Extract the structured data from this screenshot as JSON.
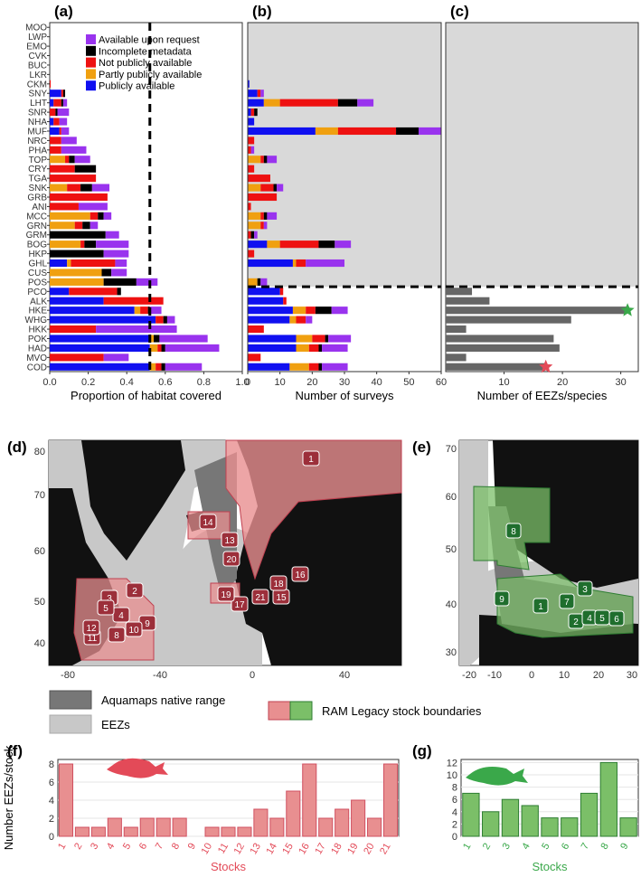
{
  "panel_letters": [
    "(a)",
    "(b)",
    "(c)",
    "(d)",
    "(e)",
    "(f)",
    "(g)"
  ],
  "colors": {
    "available_upon_request": "#9933ee",
    "incomplete_metadata": "#000000",
    "not_publicly_available": "#ee1111",
    "partly_publicly_available": "#f0a010",
    "publicly_available": "#1010f0",
    "panel_gray": "#d9d9d9",
    "eez_bar": "#666666",
    "cod_red": "#e34a58",
    "hake_green": "#3aa84a",
    "ram_red": "#e88f90",
    "ram_green": "#7bbf68",
    "aquamaps": "#777777",
    "eez_light": "#c8c8c8"
  },
  "chart_data": [
    {
      "panel": "(a)",
      "type": "bar",
      "orientation": "horizontal",
      "stacked": true,
      "xlabel": "Proportion of habitat covered",
      "xlim": [
        0,
        1.0
      ],
      "xticks": [
        "0.0",
        "0.2",
        "0.4",
        "0.6",
        "0.8",
        "1.0"
      ],
      "reference_line": 0.52,
      "legend_position": "top",
      "legend": [
        "Available upon request",
        "Incomplete metadata",
        "Not publicly available",
        "Partly publicly available",
        "Publicly available"
      ],
      "categories": [
        "MOO",
        "LWP",
        "EMO",
        "CVK",
        "BUC",
        "LKR",
        "CKM",
        "SNY",
        "LHT",
        "SNR",
        "NHA",
        "MUF",
        "NRC",
        "PHA",
        "TOP",
        "CRY",
        "TGA",
        "SNK",
        "GRB",
        "ANI",
        "MCC",
        "GRN",
        "GRM",
        "BOG",
        "HKP",
        "GHL",
        "CUS",
        "POS",
        "PCO",
        "ALK",
        "HKE",
        "WHG",
        "HKK",
        "POK",
        "HAD",
        "MVO",
        "COD"
      ],
      "series": [
        {
          "name": "Publicly available",
          "values": [
            0,
            0,
            0,
            0,
            0,
            0,
            0,
            0.06,
            0.02,
            0,
            0.02,
            0.05,
            0,
            0,
            0,
            0,
            0,
            0,
            0,
            0,
            0,
            0,
            0,
            0,
            0,
            0.09,
            0,
            0,
            0.1,
            0.28,
            0.44,
            0.55,
            0,
            0.52,
            0.52,
            0,
            0.52
          ]
        },
        {
          "name": "Partly publicly available",
          "values": [
            0,
            0,
            0,
            0,
            0,
            0,
            0,
            0,
            0,
            0,
            0,
            0,
            0,
            0,
            0.08,
            0,
            0,
            0.09,
            0,
            0,
            0.21,
            0.13,
            0,
            0.16,
            0,
            0.02,
            0.27,
            0.28,
            0,
            0,
            0.03,
            0,
            0,
            0.02,
            0.04,
            0,
            0.03
          ]
        },
        {
          "name": "Not publicly available",
          "values": [
            0,
            0,
            0,
            0,
            0,
            0,
            0.005,
            0.01,
            0.04,
            0.03,
            0.03,
            0.01,
            0.06,
            0.06,
            0.02,
            0.13,
            0.24,
            0.07,
            0.3,
            0.15,
            0.04,
            0.04,
            0,
            0.02,
            0,
            0.23,
            0,
            0,
            0.25,
            0.31,
            0.04,
            0.04,
            0.24,
            0,
            0.02,
            0.28,
            0.03
          ]
        },
        {
          "name": "Incomplete metadata",
          "values": [
            0,
            0,
            0,
            0,
            0,
            0,
            0,
            0.01,
            0.01,
            0.01,
            0,
            0,
            0,
            0,
            0.03,
            0.11,
            0,
            0.06,
            0,
            0,
            0.03,
            0.04,
            0.29,
            0.06,
            0.28,
            0,
            0.05,
            0.17,
            0.02,
            0,
            0.01,
            0.02,
            0,
            0.03,
            0.02,
            0,
            0.02
          ]
        },
        {
          "name": "Available upon request",
          "values": [
            0,
            0,
            0,
            0,
            0,
            0,
            0,
            0,
            0.02,
            0.06,
            0.04,
            0.04,
            0.08,
            0.13,
            0.08,
            0,
            0,
            0.09,
            0,
            0.15,
            0.04,
            0.04,
            0.07,
            0.17,
            0.13,
            0.06,
            0.08,
            0.11,
            0,
            0,
            0.06,
            0.04,
            0.42,
            0.25,
            0.28,
            0.13,
            0.19
          ]
        }
      ]
    },
    {
      "panel": "(b)",
      "type": "bar",
      "orientation": "horizontal",
      "stacked": true,
      "xlabel": "Number of surveys",
      "xlim": [
        0,
        60
      ],
      "xticks": [
        "0",
        "10",
        "20",
        "30",
        "40",
        "50",
        "60"
      ],
      "gray_band_rows": 28,
      "categories": [
        "MOO",
        "LWP",
        "EMO",
        "CVK",
        "BUC",
        "LKR",
        "CKM",
        "SNY",
        "LHT",
        "SNR",
        "NHA",
        "MUF",
        "NRC",
        "PHA",
        "TOP",
        "CRY",
        "TGA",
        "SNK",
        "GRB",
        "ANI",
        "MCC",
        "GRN",
        "GRM",
        "BOG",
        "HKP",
        "GHL",
        "CUS",
        "POS",
        "PCO",
        "ALK",
        "HKE",
        "WHG",
        "HKK",
        "POK",
        "HAD",
        "MVO",
        "COD"
      ],
      "series": [
        {
          "name": "Publicly available",
          "values": [
            0,
            0,
            0,
            0,
            0,
            0,
            0.5,
            3,
            5,
            1,
            2,
            21,
            0,
            0,
            0,
            0,
            0,
            0,
            0,
            0,
            0,
            0,
            0,
            6,
            0,
            14,
            0,
            0,
            10,
            11,
            14,
            13,
            0,
            15,
            15,
            0,
            13
          ]
        },
        {
          "name": "Partly publicly available",
          "values": [
            0,
            0,
            0,
            0,
            0,
            0,
            0,
            0,
            5,
            0,
            0,
            7,
            0,
            0,
            4,
            0,
            0,
            4,
            0,
            0,
            4,
            4,
            0,
            4,
            0,
            1,
            0,
            3,
            0,
            0,
            4,
            2,
            0,
            5,
            4,
            0,
            6
          ]
        },
        {
          "name": "Not publicly available",
          "values": [
            0,
            0,
            0,
            0,
            0,
            0,
            0,
            1,
            18,
            1,
            0,
            18,
            2,
            1,
            1,
            2,
            7,
            4,
            9,
            1,
            1,
            1,
            1,
            12,
            2,
            3,
            0,
            0,
            1,
            1,
            3,
            3,
            5,
            4,
            3,
            4,
            3
          ]
        },
        {
          "name": "Incomplete metadata",
          "values": [
            0,
            0,
            0,
            0,
            0,
            0,
            0,
            0,
            6,
            1,
            0,
            7,
            0,
            0,
            1,
            0,
            0,
            1,
            0,
            0,
            1,
            0,
            1,
            5,
            0,
            0,
            0,
            1,
            0,
            0,
            5,
            0,
            0,
            1,
            1,
            0,
            1
          ]
        },
        {
          "name": "Available upon request",
          "values": [
            0,
            0,
            0,
            0,
            0,
            0,
            0,
            1,
            5,
            0,
            0,
            7,
            0,
            1,
            3,
            0,
            0,
            2,
            0,
            0,
            3,
            1,
            1,
            5,
            0,
            12,
            0,
            2,
            0,
            0,
            5,
            2,
            0,
            7,
            8,
            0,
            8
          ]
        }
      ]
    },
    {
      "panel": "(c)",
      "type": "bar",
      "orientation": "horizontal",
      "xlabel": "Number of EEZs/species",
      "xlim": [
        0,
        33
      ],
      "xticks": [
        "10",
        "20",
        "30"
      ],
      "gray_band_rows": 28,
      "categories": [
        "PCO",
        "ALK",
        "HKE",
        "WHG",
        "HKK",
        "POK",
        "HAD",
        "MVO",
        "COD"
      ],
      "values": [
        4.5,
        7.5,
        31,
        21.5,
        3.5,
        18.5,
        19.5,
        3.5,
        17
      ],
      "stars": [
        {
          "category": "HKE",
          "value": 31,
          "color": "#3aa84a"
        },
        {
          "category": "COD",
          "value": 17,
          "color": "#e34a58"
        }
      ]
    },
    {
      "panel": "(f)",
      "type": "bar",
      "ylabel": "Number EEZs/stock",
      "xlabel": "Stocks",
      "ylim": [
        0,
        8.5
      ],
      "yticks": [
        "0",
        "2",
        "4",
        "6",
        "8"
      ],
      "categories": [
        "1",
        "2",
        "3",
        "4",
        "5",
        "6",
        "7",
        "8",
        "9",
        "10",
        "11",
        "12",
        "13",
        "14",
        "15",
        "16",
        "17",
        "18",
        "19",
        "20",
        "21"
      ],
      "values": [
        8,
        1,
        1,
        2,
        1,
        2,
        2,
        2,
        0,
        1,
        1,
        1,
        3,
        2,
        5,
        8,
        2,
        3,
        4,
        2,
        8
      ]
    },
    {
      "panel": "(g)",
      "type": "bar",
      "xlabel": "Stocks",
      "ylim": [
        0,
        12.5
      ],
      "yticks": [
        "0",
        "2",
        "4",
        "6",
        "8",
        "10",
        "12"
      ],
      "categories": [
        "1",
        "2",
        "3",
        "4",
        "5",
        "6",
        "7",
        "8",
        "9"
      ],
      "values": [
        7,
        4,
        6,
        5,
        3,
        3,
        7,
        12,
        3
      ]
    }
  ],
  "maps": {
    "d": {
      "yticks": [
        "40",
        "50",
        "60",
        "70",
        "80"
      ],
      "xticks": [
        "-80",
        "-40",
        "0",
        "40"
      ],
      "stock_labels": [
        "1",
        "2",
        "3",
        "4",
        "5",
        "8",
        "9",
        "10",
        "11",
        "12",
        "13",
        "14",
        "15",
        "16",
        "17",
        "18",
        "19",
        "20",
        "21"
      ]
    },
    "e": {
      "yticks": [
        "30",
        "40",
        "50",
        "60",
        "70"
      ],
      "xticks": [
        "-20",
        "-10",
        "0",
        "10",
        "20",
        "30"
      ],
      "stock_labels": [
        "1",
        "2",
        "3",
        "4",
        "5",
        "6",
        "7",
        "8",
        "9"
      ]
    }
  },
  "map_legend": {
    "aquamaps": "Aquamaps native range",
    "eezs": "EEZs",
    "ram": "RAM Legacy stock boundaries"
  }
}
